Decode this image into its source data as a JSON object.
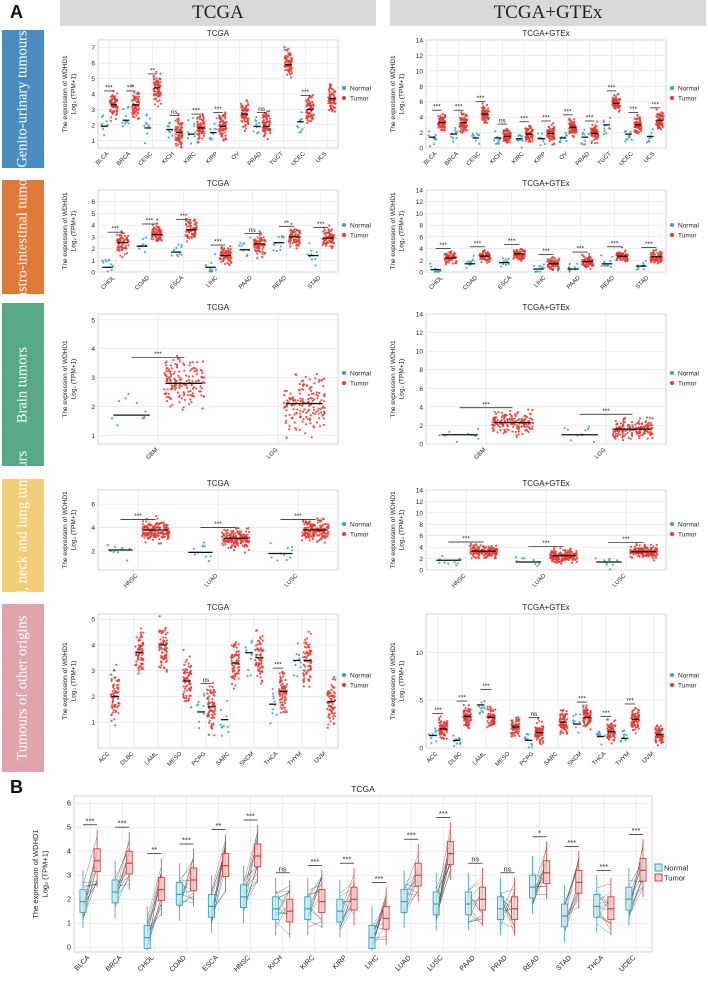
{
  "panels": {
    "a": "A",
    "b": "B"
  },
  "columns": {
    "left": "TCGA",
    "right": "TCGA+GTEx"
  },
  "categories": [
    {
      "label": "Genito-urinary tumours",
      "color": "#4a8cc0"
    },
    {
      "label": "gastro-intestinal tumors",
      "color": "#e07a39"
    },
    {
      "label": "Brain tumors",
      "color": "#57a98a"
    },
    {
      "label": "Head, neck and lung tumours",
      "color": "#f2cd77"
    },
    {
      "label": "Tumours of other origins",
      "color": "#dfa4ac"
    }
  ],
  "legend": {
    "normal": "Normal",
    "tumor": "Tumor"
  },
  "ylabel_line1": "The expression of WDHD1",
  "ylabel_line2": "Log₂ (TPM+1)",
  "colors": {
    "normal": "#2aa6c6",
    "tumor": "#e8382f",
    "grid": "#e3e3e3"
  },
  "chart_data": [
    {
      "id": "gu-tcga",
      "type": "scatter",
      "title": "TCGA",
      "ylim": [
        0.5,
        7.5
      ],
      "yticks": [
        1,
        2,
        3,
        4,
        5,
        6,
        7
      ],
      "categories": [
        "BLCA",
        "BRCA",
        "CESC",
        "KICH",
        "KIRC",
        "KIRP",
        "OV",
        "PRAD",
        "TGCT",
        "UCEC",
        "UCS"
      ],
      "normal_median": [
        1.9,
        2.3,
        1.8,
        1.7,
        1.4,
        1.5,
        null,
        1.9,
        null,
        2.2,
        null
      ],
      "tumor_median": [
        3.3,
        3.3,
        4.4,
        1.5,
        1.8,
        1.9,
        2.7,
        1.9,
        5.9,
        3.0,
        3.7
      ],
      "significance": [
        "***",
        "***",
        "**",
        "ns",
        "***",
        "***",
        "",
        "ns",
        "",
        "***",
        ""
      ]
    },
    {
      "id": "gu-gtex",
      "type": "scatter",
      "title": "TCGA+GTEx",
      "ylim": [
        0,
        14
      ],
      "yticks": [
        0,
        2,
        4,
        6,
        8,
        10,
        12,
        14
      ],
      "categories": [
        "BLCA",
        "BRCA",
        "CESC",
        "KICH",
        "KIRC",
        "KIRP",
        "OV",
        "PRAD",
        "TGCT",
        "UCEC",
        "UCS"
      ],
      "normal_median": [
        1.4,
        1.8,
        1.3,
        1.3,
        1.2,
        1.2,
        1.3,
        1.4,
        3.0,
        1.8,
        1.5
      ],
      "tumor_median": [
        3.3,
        3.3,
        4.4,
        1.5,
        1.8,
        1.9,
        2.7,
        1.9,
        5.8,
        3.0,
        3.6
      ],
      "significance": [
        "***",
        "***",
        "***",
        "ns",
        "***",
        "***",
        "***",
        "***",
        "***",
        "***",
        "***"
      ]
    },
    {
      "id": "gi-tcga",
      "type": "scatter",
      "title": "TCGA",
      "ylim": [
        0,
        7
      ],
      "yticks": [
        0,
        1,
        2,
        3,
        4,
        5,
        6
      ],
      "categories": [
        "CHOL",
        "COAD",
        "ESCA",
        "LIHC",
        "PAAD",
        "READ",
        "STAD"
      ],
      "normal_median": [
        0.4,
        2.2,
        1.7,
        0.4,
        1.9,
        2.5,
        1.4
      ],
      "tumor_median": [
        2.5,
        3.2,
        3.6,
        1.4,
        2.4,
        3.0,
        2.9
      ],
      "significance": [
        "***",
        "***",
        "***",
        "***",
        "ns",
        "**",
        "***"
      ]
    },
    {
      "id": "gi-gtex",
      "type": "scatter",
      "title": "TCGA+GTEx",
      "ylim": [
        0,
        14
      ],
      "yticks": [
        0,
        2,
        4,
        6,
        8,
        10,
        12,
        14
      ],
      "categories": [
        "CHOL",
        "COAD",
        "ESCA",
        "LIHC",
        "PAAD",
        "READ",
        "STAD"
      ],
      "normal_median": [
        0.4,
        1.4,
        1.6,
        0.5,
        0.5,
        1.4,
        1.0
      ],
      "tumor_median": [
        2.4,
        2.7,
        3.1,
        1.4,
        1.8,
        2.7,
        2.6
      ],
      "significance": [
        "***",
        "***",
        "***",
        "***",
        "***",
        "***",
        "***"
      ]
    },
    {
      "id": "br-tcga",
      "type": "scatter",
      "title": "TCGA",
      "ylim": [
        0.7,
        5.2
      ],
      "yticks": [
        1,
        2,
        3,
        4,
        5
      ],
      "categories": [
        "GBM",
        "LGG"
      ],
      "normal_median": [
        1.7,
        null
      ],
      "tumor_median": [
        2.8,
        2.1
      ],
      "significance": [
        "***",
        ""
      ]
    },
    {
      "id": "br-gtex",
      "type": "scatter",
      "title": "TCGA+GTEx",
      "ylim": [
        0,
        14
      ],
      "yticks": [
        0,
        2,
        4,
        6,
        8,
        10,
        12,
        14
      ],
      "categories": [
        "GBM",
        "LGG"
      ],
      "normal_median": [
        1.0,
        1.0
      ],
      "tumor_median": [
        2.3,
        1.6
      ],
      "significance": [
        "***",
        "***"
      ]
    },
    {
      "id": "hn-tcga",
      "type": "scatter",
      "title": "TCGA",
      "ylim": [
        0.4,
        7.2
      ],
      "yticks": [
        2,
        4,
        6
      ],
      "categories": [
        "HNSC",
        "LUAD",
        "LUSC"
      ],
      "normal_median": [
        2.1,
        1.9,
        1.8
      ],
      "tumor_median": [
        3.8,
        3.1,
        3.8
      ],
      "significance": [
        "***",
        "***",
        "***"
      ]
    },
    {
      "id": "hn-gtex",
      "type": "scatter",
      "title": "TCGA+GTEx",
      "ylim": [
        0,
        14
      ],
      "yticks": [
        0,
        2,
        4,
        6,
        8,
        10,
        12,
        14
      ],
      "categories": [
        "HNSC",
        "LUAD",
        "LUSC"
      ],
      "normal_median": [
        1.7,
        1.4,
        1.4
      ],
      "tumor_median": [
        3.3,
        2.5,
        3.2
      ],
      "significance": [
        "***",
        "***",
        "***"
      ]
    },
    {
      "id": "ot-tcga",
      "type": "scatter",
      "title": "TCGA",
      "ylim": [
        0,
        5.2
      ],
      "yticks": [
        1,
        2,
        3,
        4,
        5
      ],
      "categories": [
        "ACC",
        "DLBC",
        "LAML",
        "MESO",
        "PCPG",
        "SARC",
        "SKCM",
        "THCA",
        "THYM",
        "UVM"
      ],
      "normal_median": [
        null,
        null,
        null,
        null,
        1.4,
        1.1,
        3.7,
        1.7,
        3.4,
        null
      ],
      "tumor_median": [
        2.0,
        3.7,
        4.0,
        2.6,
        1.6,
        3.3,
        3.5,
        2.2,
        3.4,
        1.8
      ],
      "significance": [
        "",
        "",
        "",
        "",
        "ns",
        "",
        "",
        "***",
        "",
        ""
      ]
    },
    {
      "id": "ot-gtex",
      "type": "scatter",
      "title": "TCGA+GTEx",
      "ylim": [
        0,
        14
      ],
      "yticks": [
        0,
        5,
        10
      ],
      "categories": [
        "ACC",
        "DLBC",
        "LAML",
        "MESO",
        "PCPG",
        "SARC",
        "SKCM",
        "THCA",
        "THYM",
        "UVM"
      ],
      "normal_median": [
        1.3,
        0.8,
        4.5,
        null,
        0.8,
        null,
        2.5,
        1.2,
        1.0,
        null
      ],
      "tumor_median": [
        2.0,
        3.3,
        3.2,
        2.2,
        1.6,
        2.7,
        3.2,
        1.7,
        3.0,
        1.4
      ],
      "significance": [
        "***",
        "***",
        "***",
        "",
        "ns",
        "",
        "***",
        "***",
        "***",
        ""
      ]
    },
    {
      "id": "paired",
      "type": "box",
      "title": "TCGA",
      "ylim": [
        -0.2,
        6.3
      ],
      "yticks": [
        0,
        1,
        2,
        3,
        4,
        5,
        6
      ],
      "categories": [
        "BLCA",
        "BRCA",
        "CHOL",
        "COAD",
        "ESCA",
        "HNSC",
        "KICH",
        "KIRC",
        "KIRP",
        "LIHC",
        "LUAD",
        "LUSC",
        "PAAD",
        "PRAD",
        "READ",
        "STAD",
        "THCA",
        "UCEC"
      ],
      "normal_median": [
        1.9,
        2.3,
        0.4,
        2.2,
        1.7,
        2.1,
        1.6,
        1.6,
        1.5,
        0.4,
        1.9,
        1.8,
        1.8,
        1.6,
        2.5,
        1.3,
        1.7,
        2.0
      ],
      "tumor_median": [
        3.6,
        3.5,
        2.4,
        2.8,
        3.4,
        3.8,
        1.5,
        1.9,
        2.0,
        1.2,
        3.0,
        3.9,
        2.0,
        1.6,
        3.1,
        2.7,
        1.6,
        3.2
      ],
      "significance": [
        "***",
        "***",
        "**",
        "***",
        "**",
        "***",
        "ns",
        "***",
        "***",
        "***",
        "***",
        "***",
        "ns",
        "ns",
        "*",
        "***",
        "***",
        "***"
      ]
    }
  ]
}
